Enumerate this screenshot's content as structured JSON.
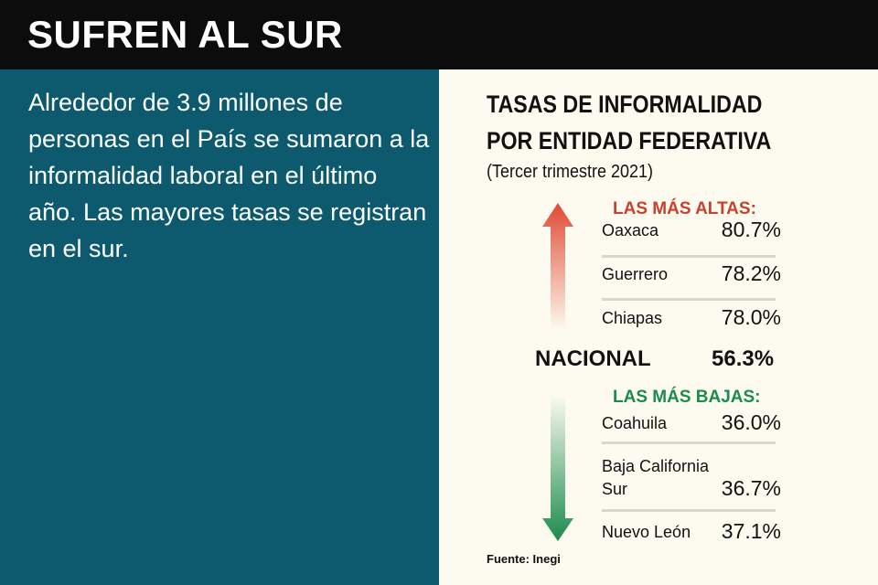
{
  "header": {
    "title": "SUFREN AL SUR"
  },
  "intro": "Alrededor de 3.9 millones de personas en el País se sumaron a la informalidad laboral en el último año. Las mayores tasas se registran en el sur.",
  "panel": {
    "title_line1": "TASAS DE INFORMALIDAD",
    "title_line2": "POR ENTIDAD FEDERATIVA",
    "subtitle": "(Tercer trimestre 2021)",
    "highest_label": "LAS MÁS ALTAS:",
    "highest": [
      {
        "state": "Oaxaca",
        "rate": "80.7%"
      },
      {
        "state": "Guerrero",
        "rate": "78.2%"
      },
      {
        "state": "Chiapas",
        "rate": "78.0%"
      }
    ],
    "national": {
      "label": "NACIONAL",
      "rate": "56.3%"
    },
    "lowest_label": "LAS MÁS BAJAS:",
    "lowest": [
      {
        "state": "Coahuila",
        "rate": "36.0%"
      },
      {
        "state": "Baja California Sur",
        "rate": "36.7%"
      },
      {
        "state": "Nuevo León",
        "rate": "37.1%"
      }
    ],
    "source": "Fuente: Inegi"
  },
  "colors": {
    "header_bg": "#0c0c0c",
    "left_bg": "#0d5a6f",
    "right_bg": "#fdfbf0",
    "high": "#c8412f",
    "low": "#1d8a4f"
  }
}
